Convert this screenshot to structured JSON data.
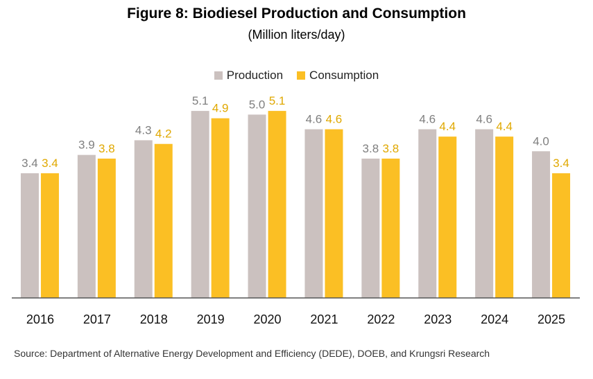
{
  "chart_data": {
    "type": "bar",
    "title": "Figure 8: Biodiesel Production and Consumption",
    "subtitle": "(Million liters/day)",
    "categories": [
      "2016",
      "2017",
      "2018",
      "2019",
      "2020",
      "2021",
      "2022",
      "2023",
      "2024",
      "2025"
    ],
    "series": [
      {
        "name": "Production",
        "color": "#cbc1bf",
        "label_color": "#7f7f7f",
        "values": [
          3.4,
          3.9,
          4.3,
          5.1,
          5.0,
          4.6,
          3.8,
          4.6,
          4.6,
          4.0
        ]
      },
      {
        "name": "Consumption",
        "color": "#fbbf24",
        "label_color": "#e0a800",
        "values": [
          3.4,
          3.8,
          4.2,
          4.9,
          5.1,
          4.6,
          3.8,
          4.4,
          4.4,
          3.4
        ]
      }
    ],
    "ylim": [
      0,
      6.5
    ],
    "grid": false,
    "legend_position": "top-center",
    "data_labels": true,
    "source": "Source: Department of Alternative Energy Development and Efficiency (DEDE), DOEB, and Krungsri Research"
  }
}
